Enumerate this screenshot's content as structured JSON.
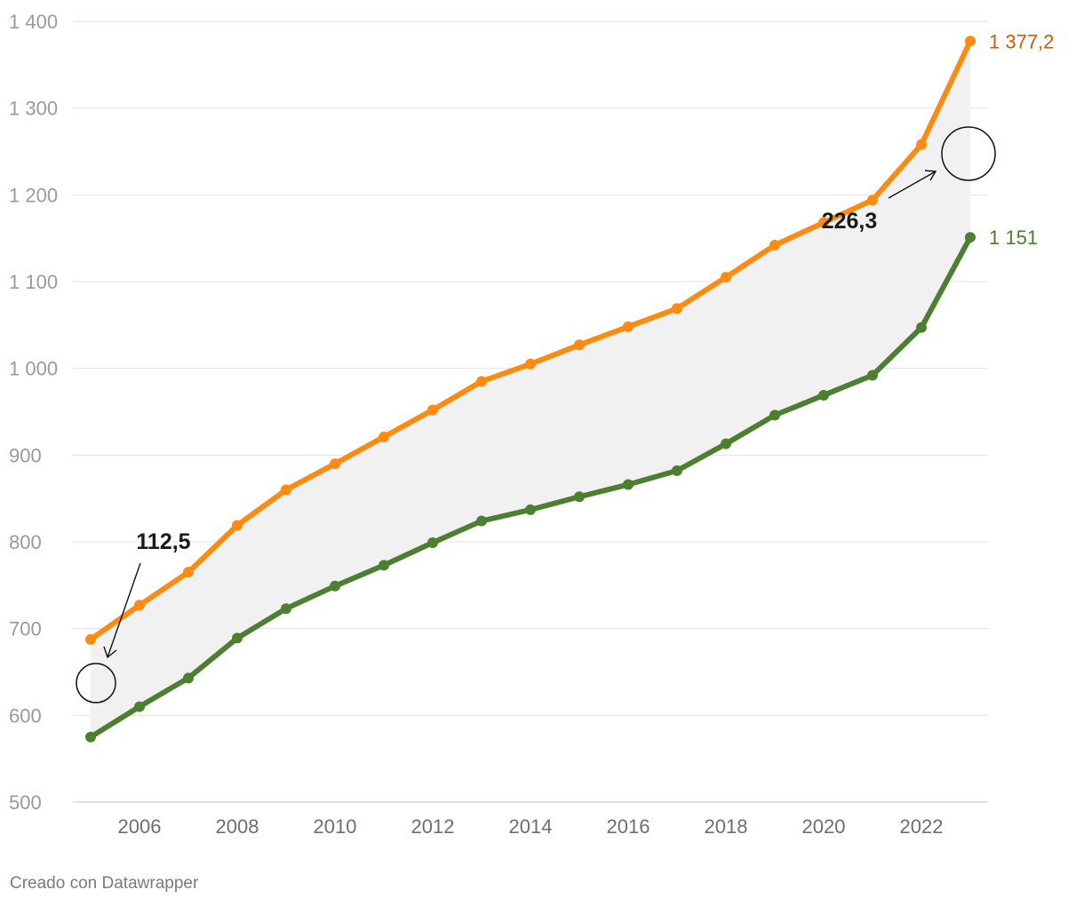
{
  "chart_data": {
    "type": "line",
    "title": "",
    "xlabel": "",
    "ylabel": "",
    "x": [
      2005,
      2006,
      2007,
      2008,
      2009,
      2010,
      2011,
      2012,
      2013,
      2014,
      2015,
      2016,
      2017,
      2018,
      2019,
      2020,
      2021,
      2022,
      2023
    ],
    "x_tick_labels": [
      "2006",
      "2008",
      "2010",
      "2012",
      "2014",
      "2016",
      "2018",
      "2020",
      "2022"
    ],
    "x_ticks": [
      2006,
      2008,
      2010,
      2012,
      2014,
      2016,
      2018,
      2020,
      2022
    ],
    "ylim": [
      500,
      1400
    ],
    "y_ticks": [
      500,
      600,
      700,
      800,
      900,
      1000,
      1100,
      1200,
      1300,
      1400
    ],
    "y_tick_labels": [
      "500",
      "600",
      "700",
      "800",
      "900",
      "1 000",
      "1 100",
      "1 200",
      "1 300",
      "1 400"
    ],
    "grid": true,
    "series": [
      {
        "name": "orange",
        "color": "#ff8a10",
        "label_color": "#d45a00",
        "end_label": "1 377,2",
        "values": [
          687.5,
          727,
          765,
          819,
          860,
          890,
          921,
          952,
          985,
          1005,
          1027,
          1048,
          1069,
          1105,
          1142,
          1168,
          1194,
          1258,
          1377.2
        ]
      },
      {
        "name": "green",
        "color": "#4c7f30",
        "label_color": "#4c7f30",
        "end_label": "1 151",
        "values": [
          575,
          610,
          643,
          689,
          723,
          749,
          773,
          799,
          824,
          837,
          852,
          866,
          882,
          913,
          946,
          969,
          992,
          1047,
          1151
        ]
      }
    ],
    "fill_between": {
      "color": "#f1f1f1"
    },
    "annotations": [
      {
        "text": "112,5",
        "year": 2005,
        "gap": 112.5
      },
      {
        "text": "226,3",
        "year": 2023,
        "gap": 226.3
      }
    ]
  },
  "footer": {
    "credit": "Creado con Datawrapper"
  }
}
